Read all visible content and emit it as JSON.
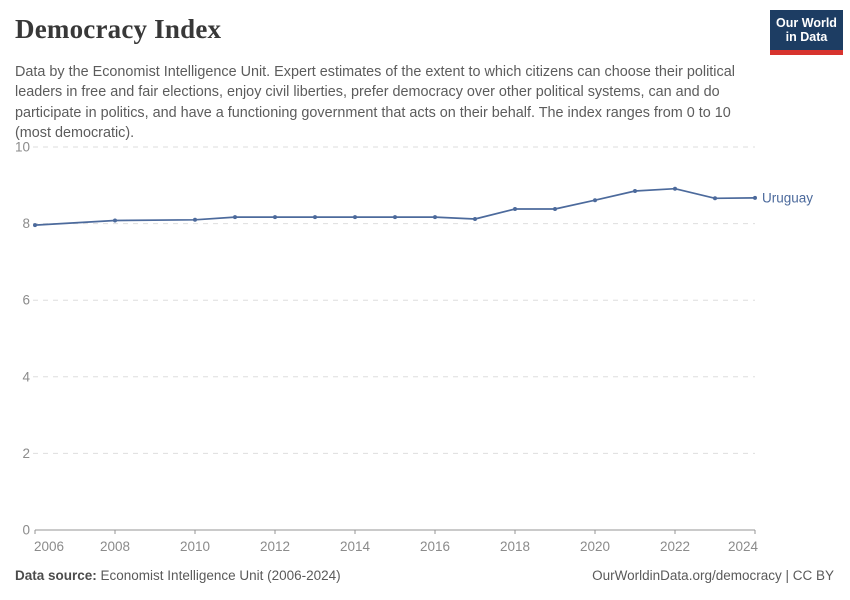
{
  "header": {
    "title": "Democracy Index",
    "subtitle": "Data by the Economist Intelligence Unit. Expert estimates of the extent to which citizens can choose their political leaders in free and fair elections, enjoy civil liberties, prefer democracy over other political systems, can and do participate in politics, and have a functioning government that acts on their behalf. The index ranges from 0 to 10 (most democratic).",
    "logo": {
      "line1": "Our World",
      "line2": "in Data",
      "bg_color": "#1d3d63",
      "accent_color": "#d7332e"
    }
  },
  "chart_data": {
    "type": "line",
    "title": "Democracy Index",
    "xlabel": "",
    "ylabel": "",
    "xlim": [
      2006,
      2024
    ],
    "ylim": [
      0,
      10
    ],
    "grid": "horizontal-dashed",
    "legend_position": "end-of-line-label",
    "x_ticks": [
      2006,
      2008,
      2010,
      2012,
      2014,
      2016,
      2018,
      2020,
      2022,
      2024
    ],
    "y_ticks": [
      0,
      2,
      4,
      6,
      8,
      10
    ],
    "series": [
      {
        "name": "Uruguay",
        "color": "#4C6A9C",
        "points": [
          [
            2006,
            7.96
          ],
          [
            2008,
            8.08
          ],
          [
            2010,
            8.1
          ],
          [
            2011,
            8.17
          ],
          [
            2012,
            8.17
          ],
          [
            2013,
            8.17
          ],
          [
            2014,
            8.17
          ],
          [
            2015,
            8.17
          ],
          [
            2016,
            8.17
          ],
          [
            2017,
            8.12
          ],
          [
            2018,
            8.38
          ],
          [
            2019,
            8.38
          ],
          [
            2020,
            8.61
          ],
          [
            2021,
            8.85
          ],
          [
            2022,
            8.91
          ],
          [
            2023,
            8.66
          ],
          [
            2024,
            8.67
          ]
        ]
      }
    ]
  },
  "footer": {
    "source_label": "Data source:",
    "source_text": " Economist Intelligence Unit (2006-2024)",
    "credit": "OurWorldinData.org/democracy | CC BY"
  }
}
